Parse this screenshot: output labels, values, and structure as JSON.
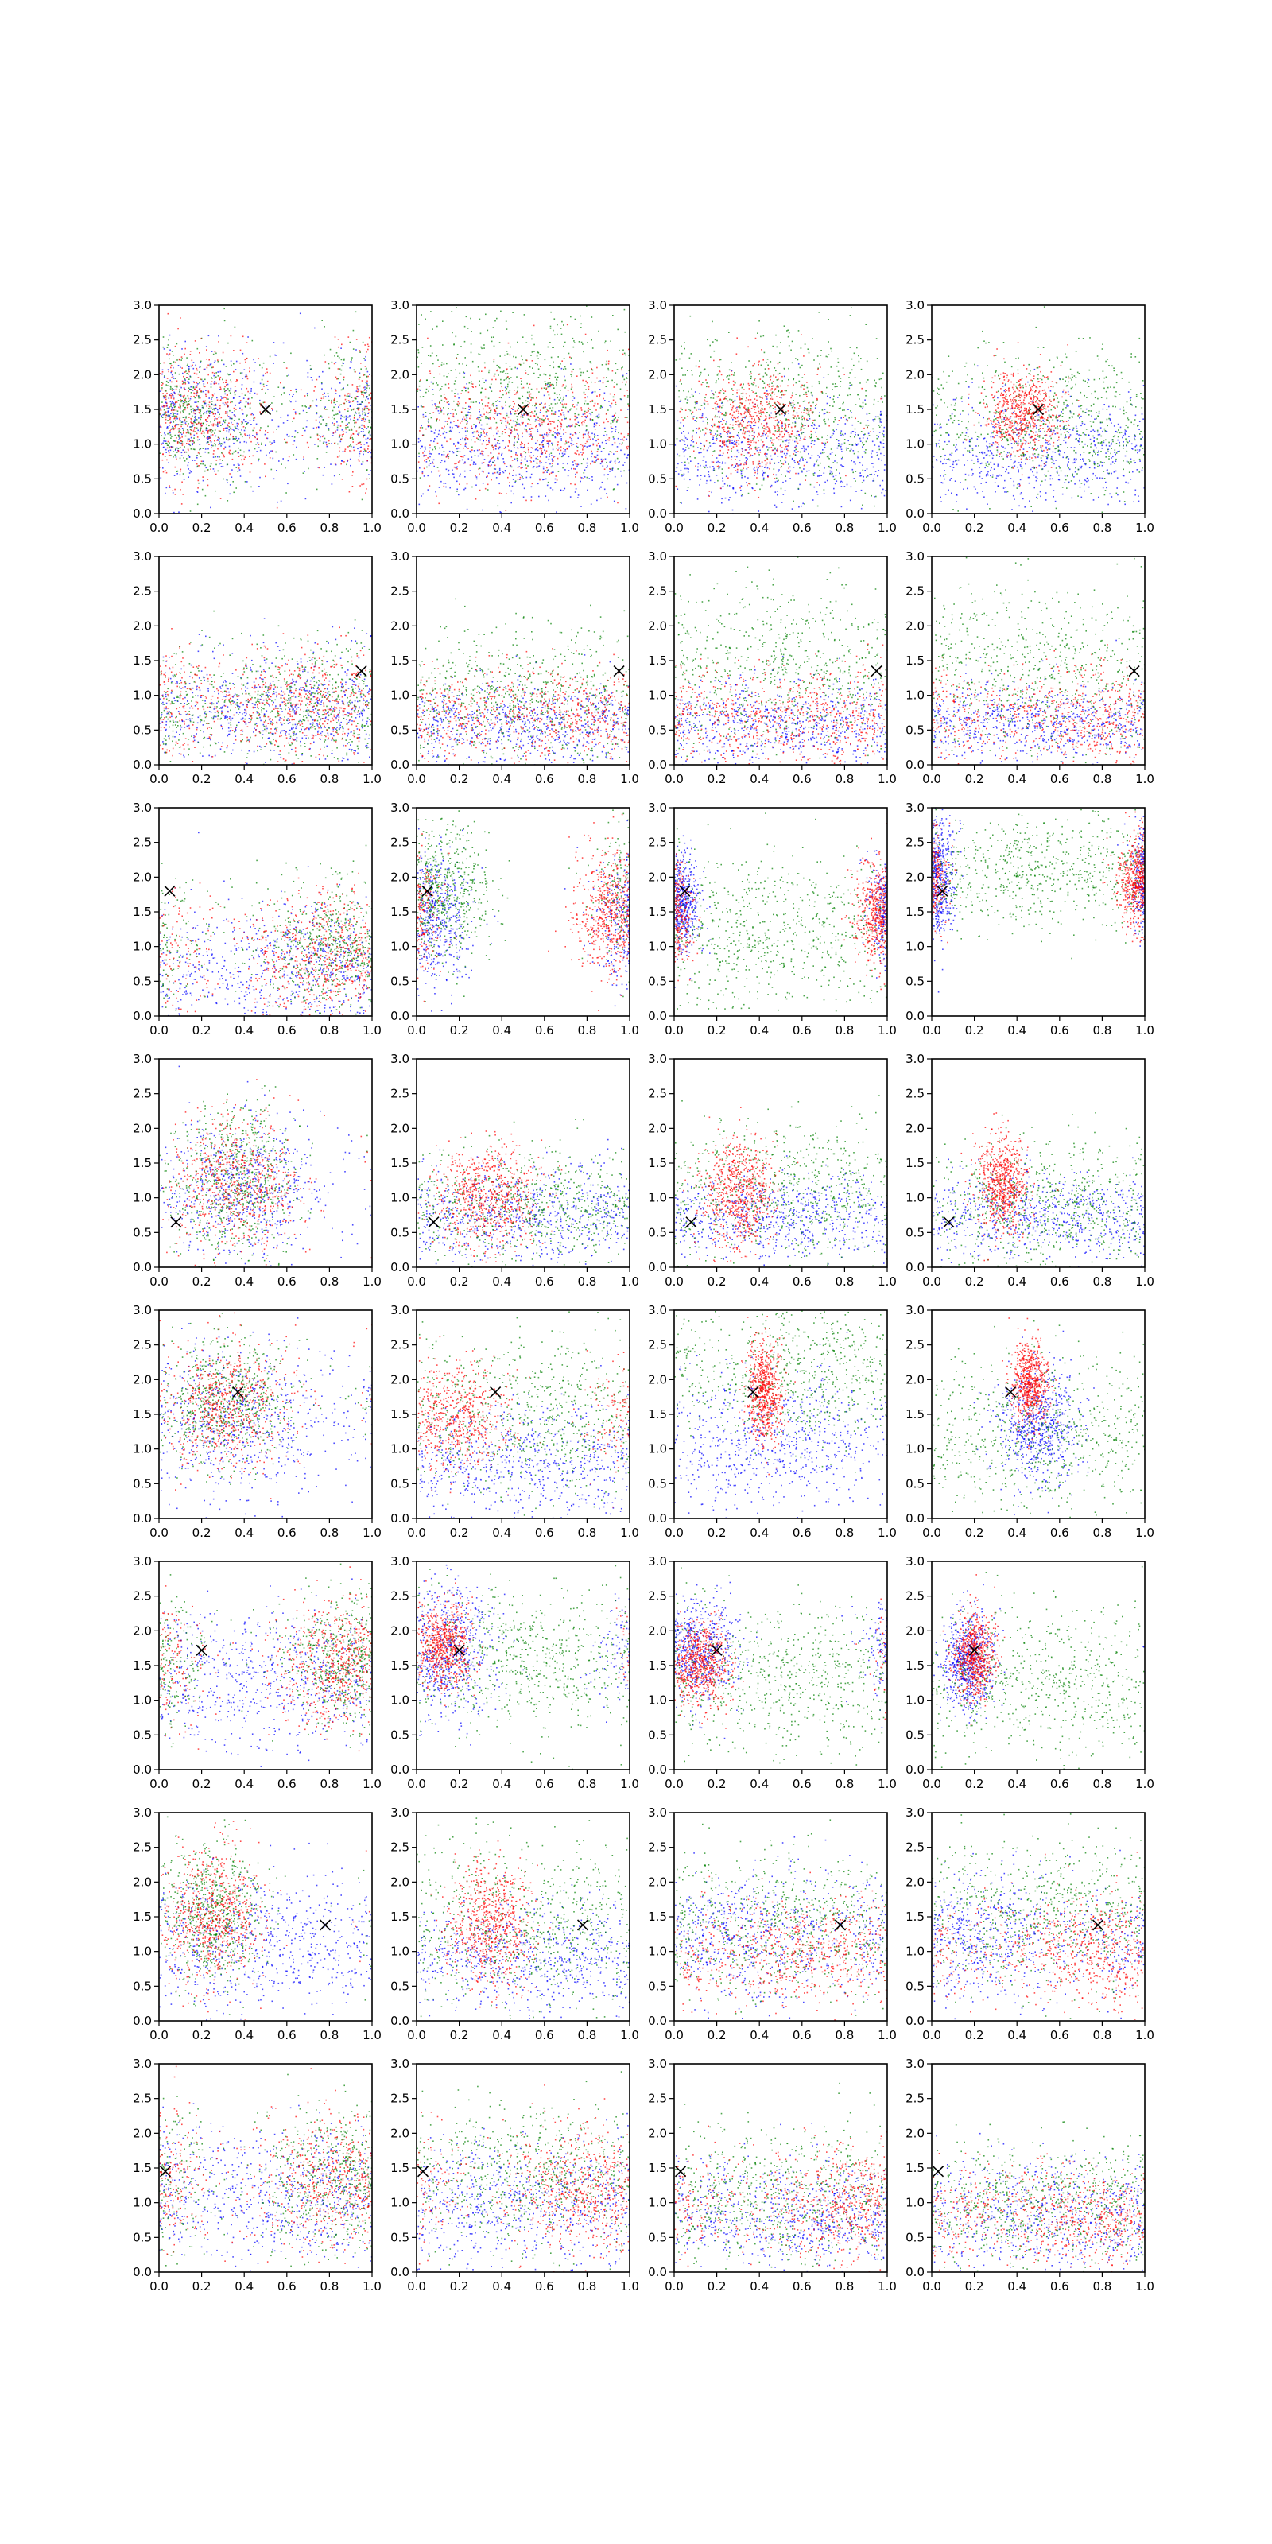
{
  "chart_data": {
    "type": "scatter",
    "title": "",
    "layout": {
      "rows": 8,
      "cols": 4
    },
    "xlim": [
      0,
      1
    ],
    "ylim": [
      0,
      3
    ],
    "x_ticks": [
      "0.0",
      "0.2",
      "0.4",
      "0.6",
      "0.8",
      "1.0"
    ],
    "y_ticks": [
      "0.0",
      "0.5",
      "1.0",
      "1.5",
      "2.0",
      "2.5",
      "3.0"
    ],
    "grid": false,
    "legend": "none",
    "series_colors": {
      "red": "#ff0000",
      "green": "#008000",
      "blue": "#0000ff"
    },
    "point_size": "tiny dots, thousands per panel",
    "rows": [
      {
        "marker": [
          0.5,
          1.5
        ],
        "panels": [
          {
            "red": {
              "x": 0.13,
              "y": 1.45,
              "sx": 0.2,
              "sy": 0.5
            },
            "green": {
              "x": 0.12,
              "y": 1.45,
              "sx": 0.22,
              "sy": 0.5
            },
            "blue": {
              "x": 0.15,
              "y": 1.35,
              "sx": 0.25,
              "sy": 0.5
            }
          },
          {
            "red": {
              "x": 0.45,
              "y": 1.25,
              "sx": 0.3,
              "sy": 0.45
            },
            "green": {
              "x": 0.5,
              "y": 1.8,
              "sx": 0.35,
              "sy": 0.6
            },
            "blue": {
              "x": 0.45,
              "y": 0.95,
              "sx": 0.4,
              "sy": 0.4
            }
          },
          {
            "red": {
              "x": 0.38,
              "y": 1.35,
              "sx": 0.15,
              "sy": 0.4
            },
            "green": {
              "x": 0.6,
              "y": 1.5,
              "sx": 0.35,
              "sy": 0.6
            },
            "blue": {
              "x": 0.35,
              "y": 0.9,
              "sx": 0.35,
              "sy": 0.4
            }
          },
          {
            "red": {
              "x": 0.42,
              "y": 1.45,
              "sx": 0.09,
              "sy": 0.3
            },
            "green": {
              "x": 0.6,
              "y": 1.3,
              "sx": 0.3,
              "sy": 0.55
            },
            "blue": {
              "x": 0.45,
              "y": 0.9,
              "sx": 0.35,
              "sy": 0.4
            }
          }
        ]
      },
      {
        "marker": [
          0.95,
          1.35
        ],
        "panels": [
          {
            "red": {
              "x": 0.8,
              "y": 0.9,
              "sx": 0.3,
              "sy": 0.4
            },
            "green": {
              "x": 0.8,
              "y": 0.9,
              "sx": 0.3,
              "sy": 0.45
            },
            "blue": {
              "x": 0.7,
              "y": 0.8,
              "sx": 0.35,
              "sy": 0.4
            }
          },
          {
            "red": {
              "x": 0.7,
              "y": 0.75,
              "sx": 0.35,
              "sy": 0.35
            },
            "green": {
              "x": 0.6,
              "y": 1.0,
              "sx": 0.35,
              "sy": 0.5
            },
            "blue": {
              "x": 0.5,
              "y": 0.6,
              "sx": 0.4,
              "sy": 0.3
            }
          },
          {
            "red": {
              "x": 0.6,
              "y": 0.7,
              "sx": 0.35,
              "sy": 0.35
            },
            "green": {
              "x": 0.5,
              "y": 1.4,
              "sx": 0.35,
              "sy": 0.6
            },
            "blue": {
              "x": 0.5,
              "y": 0.6,
              "sx": 0.4,
              "sy": 0.3
            }
          },
          {
            "red": {
              "x": 0.8,
              "y": 0.7,
              "sx": 0.3,
              "sy": 0.35
            },
            "green": {
              "x": 0.5,
              "y": 1.4,
              "sx": 0.35,
              "sy": 0.6
            },
            "blue": {
              "x": 0.5,
              "y": 0.6,
              "sx": 0.4,
              "sy": 0.3
            }
          }
        ]
      },
      {
        "marker": [
          0.05,
          1.8
        ],
        "panels": [
          {
            "red": {
              "x": 0.8,
              "y": 0.9,
              "sx": 0.2,
              "sy": 0.45
            },
            "green": {
              "x": 0.82,
              "y": 1.0,
              "sx": 0.18,
              "sy": 0.45
            },
            "blue": {
              "x": 0.75,
              "y": 0.7,
              "sx": 0.3,
              "sy": 0.45
            }
          },
          {
            "red": {
              "x": 0.92,
              "y": 1.5,
              "sx": 0.09,
              "sy": 0.45
            },
            "green": {
              "x": 0.1,
              "y": 1.8,
              "sx": 0.12,
              "sy": 0.5
            },
            "blue": {
              "x": 0.05,
              "y": 1.4,
              "sx": 0.1,
              "sy": 0.45
            }
          },
          {
            "red": {
              "x": 0.97,
              "y": 1.5,
              "sx": 0.06,
              "sy": 0.35
            },
            "green": {
              "x": 0.45,
              "y": 1.2,
              "sx": 0.35,
              "sy": 0.6
            },
            "blue": {
              "x": 0.02,
              "y": 1.6,
              "sx": 0.05,
              "sy": 0.35
            }
          },
          {
            "red": {
              "x": 0.97,
              "y": 1.95,
              "sx": 0.05,
              "sy": 0.35
            },
            "green": {
              "x": 0.5,
              "y": 2.1,
              "sx": 0.35,
              "sy": 0.4
            },
            "blue": {
              "x": 0.02,
              "y": 2.0,
              "sx": 0.04,
              "sy": 0.45
            }
          }
        ]
      },
      {
        "marker": [
          0.08,
          0.65
        ],
        "panels": [
          {
            "red": {
              "x": 0.35,
              "y": 1.2,
              "sx": 0.15,
              "sy": 0.5
            },
            "green": {
              "x": 0.35,
              "y": 1.25,
              "sx": 0.15,
              "sy": 0.55
            },
            "blue": {
              "x": 0.38,
              "y": 1.1,
              "sx": 0.2,
              "sy": 0.5
            }
          },
          {
            "red": {
              "x": 0.33,
              "y": 1.0,
              "sx": 0.12,
              "sy": 0.4
            },
            "green": {
              "x": 0.6,
              "y": 0.9,
              "sx": 0.3,
              "sy": 0.4
            },
            "blue": {
              "x": 0.45,
              "y": 0.75,
              "sx": 0.35,
              "sy": 0.35
            }
          },
          {
            "red": {
              "x": 0.3,
              "y": 1.1,
              "sx": 0.08,
              "sy": 0.4
            },
            "green": {
              "x": 0.55,
              "y": 1.1,
              "sx": 0.3,
              "sy": 0.5
            },
            "blue": {
              "x": 0.5,
              "y": 0.75,
              "sx": 0.35,
              "sy": 0.3
            }
          },
          {
            "red": {
              "x": 0.33,
              "y": 1.2,
              "sx": 0.06,
              "sy": 0.35
            },
            "green": {
              "x": 0.55,
              "y": 0.9,
              "sx": 0.3,
              "sy": 0.45
            },
            "blue": {
              "x": 0.55,
              "y": 0.75,
              "sx": 0.35,
              "sy": 0.3
            }
          }
        ]
      },
      {
        "marker": [
          0.37,
          1.82
        ],
        "panels": [
          {
            "red": {
              "x": 0.3,
              "y": 1.6,
              "sx": 0.15,
              "sy": 0.45
            },
            "green": {
              "x": 0.3,
              "y": 1.7,
              "sx": 0.15,
              "sy": 0.45
            },
            "blue": {
              "x": 0.35,
              "y": 1.4,
              "sx": 0.25,
              "sy": 0.55
            }
          },
          {
            "red": {
              "x": 0.15,
              "y": 1.5,
              "sx": 0.15,
              "sy": 0.4
            },
            "green": {
              "x": 0.6,
              "y": 1.5,
              "sx": 0.35,
              "sy": 0.55
            },
            "blue": {
              "x": 0.45,
              "y": 0.8,
              "sx": 0.4,
              "sy": 0.4
            }
          },
          {
            "red": {
              "x": 0.42,
              "y": 1.85,
              "sx": 0.04,
              "sy": 0.35
            },
            "green": {
              "x": 0.65,
              "y": 2.1,
              "sx": 0.3,
              "sy": 0.5
            },
            "blue": {
              "x": 0.45,
              "y": 1.1,
              "sx": 0.3,
              "sy": 0.5
            }
          },
          {
            "red": {
              "x": 0.46,
              "y": 1.95,
              "sx": 0.04,
              "sy": 0.3
            },
            "green": {
              "x": 0.5,
              "y": 1.2,
              "sx": 0.35,
              "sy": 0.55
            },
            "blue": {
              "x": 0.5,
              "y": 1.35,
              "sx": 0.1,
              "sy": 0.4
            }
          }
        ]
      },
      {
        "marker": [
          0.2,
          1.72
        ],
        "panels": [
          {
            "red": {
              "x": 0.85,
              "y": 1.5,
              "sx": 0.15,
              "sy": 0.45
            },
            "green": {
              "x": 0.88,
              "y": 1.6,
              "sx": 0.15,
              "sy": 0.45
            },
            "blue": {
              "x": 0.6,
              "y": 1.3,
              "sx": 0.4,
              "sy": 0.5
            }
          },
          {
            "red": {
              "x": 0.12,
              "y": 1.8,
              "sx": 0.07,
              "sy": 0.3
            },
            "green": {
              "x": 0.55,
              "y": 1.6,
              "sx": 0.35,
              "sy": 0.55
            },
            "blue": {
              "x": 0.12,
              "y": 1.7,
              "sx": 0.12,
              "sy": 0.45
            }
          },
          {
            "red": {
              "x": 0.12,
              "y": 1.55,
              "sx": 0.07,
              "sy": 0.3
            },
            "green": {
              "x": 0.6,
              "y": 1.3,
              "sx": 0.35,
              "sy": 0.55
            },
            "blue": {
              "x": 0.1,
              "y": 1.75,
              "sx": 0.1,
              "sy": 0.35
            }
          },
          {
            "red": {
              "x": 0.2,
              "y": 1.65,
              "sx": 0.05,
              "sy": 0.3
            },
            "green": {
              "x": 0.6,
              "y": 1.3,
              "sx": 0.35,
              "sy": 0.55
            },
            "blue": {
              "x": 0.17,
              "y": 1.55,
              "sx": 0.06,
              "sy": 0.35
            }
          }
        ]
      },
      {
        "marker": [
          0.78,
          1.38
        ],
        "panels": [
          {
            "red": {
              "x": 0.25,
              "y": 1.5,
              "sx": 0.12,
              "sy": 0.5
            },
            "green": {
              "x": 0.25,
              "y": 1.55,
              "sx": 0.12,
              "sy": 0.5
            },
            "blue": {
              "x": 0.45,
              "y": 1.1,
              "sx": 0.35,
              "sy": 0.5
            }
          },
          {
            "red": {
              "x": 0.35,
              "y": 1.4,
              "sx": 0.1,
              "sy": 0.45
            },
            "green": {
              "x": 0.6,
              "y": 1.4,
              "sx": 0.35,
              "sy": 0.6
            },
            "blue": {
              "x": 0.5,
              "y": 0.9,
              "sx": 0.4,
              "sy": 0.4
            }
          },
          {
            "red": {
              "x": 0.6,
              "y": 1.0,
              "sx": 0.3,
              "sy": 0.4
            },
            "green": {
              "x": 0.55,
              "y": 1.4,
              "sx": 0.35,
              "sy": 0.55
            },
            "blue": {
              "x": 0.3,
              "y": 1.2,
              "sx": 0.3,
              "sy": 0.45
            }
          },
          {
            "red": {
              "x": 0.75,
              "y": 1.0,
              "sx": 0.25,
              "sy": 0.4
            },
            "green": {
              "x": 0.55,
              "y": 1.6,
              "sx": 0.35,
              "sy": 0.55
            },
            "blue": {
              "x": 0.2,
              "y": 1.2,
              "sx": 0.25,
              "sy": 0.45
            }
          }
        ]
      },
      {
        "marker": [
          0.03,
          1.45
        ],
        "panels": [
          {
            "red": {
              "x": 0.85,
              "y": 1.3,
              "sx": 0.2,
              "sy": 0.5
            },
            "green": {
              "x": 0.85,
              "y": 1.35,
              "sx": 0.2,
              "sy": 0.5
            },
            "blue": {
              "x": 0.7,
              "y": 1.1,
              "sx": 0.35,
              "sy": 0.5
            }
          },
          {
            "red": {
              "x": 0.8,
              "y": 1.2,
              "sx": 0.2,
              "sy": 0.45
            },
            "green": {
              "x": 0.6,
              "y": 1.4,
              "sx": 0.3,
              "sy": 0.5
            },
            "blue": {
              "x": 0.6,
              "y": 1.0,
              "sx": 0.4,
              "sy": 0.45
            }
          },
          {
            "red": {
              "x": 0.8,
              "y": 1.0,
              "sx": 0.22,
              "sy": 0.4
            },
            "green": {
              "x": 0.4,
              "y": 1.1,
              "sx": 0.35,
              "sy": 0.5
            },
            "blue": {
              "x": 0.65,
              "y": 0.8,
              "sx": 0.35,
              "sy": 0.4
            }
          },
          {
            "red": {
              "x": 0.75,
              "y": 0.8,
              "sx": 0.3,
              "sy": 0.35
            },
            "green": {
              "x": 0.5,
              "y": 1.0,
              "sx": 0.35,
              "sy": 0.45
            },
            "blue": {
              "x": 0.65,
              "y": 0.8,
              "sx": 0.35,
              "sy": 0.4
            }
          }
        ]
      }
    ]
  }
}
